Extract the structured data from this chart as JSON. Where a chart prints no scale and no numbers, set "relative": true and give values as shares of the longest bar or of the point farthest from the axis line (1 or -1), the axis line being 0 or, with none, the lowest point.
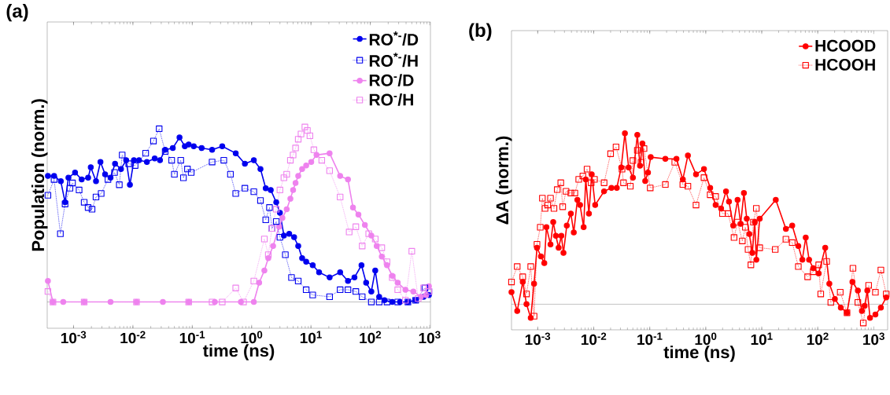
{
  "chart_data": [
    {
      "type": "line",
      "title": "(a)",
      "xlabel": "time (ns)",
      "ylabel": "Population (norm.)",
      "relative": true,
      "log": "x",
      "legend": "top right",
      "xlim": [
        0.00036,
        1030
      ],
      "xticks": [
        {
          "value": 0.001,
          "label": "10$^{-3}$"
        },
        {
          "value": 0.01,
          "label": "10$^{-2}$"
        },
        {
          "value": 0.1,
          "label": "10$^{-1}$"
        },
        {
          "value": 1,
          "label": "10$^{0}$"
        },
        {
          "value": 10,
          "label": "10$^{1}$"
        },
        {
          "value": 100,
          "label": "10$^{2}$"
        },
        {
          "value": 1000,
          "label": "10$^{3}$"
        }
      ],
      "series": [
        {
          "name": "RO$^{*-}$/D",
          "color": "#0000ee",
          "marker": "circle",
          "line_style": "solid",
          "x": [
            0.00037,
            0.00047,
            0.00061,
            0.00072,
            0.00082,
            0.00106,
            0.00137,
            0.00176,
            0.00195,
            0.00239,
            0.00284,
            0.0034,
            0.0042,
            0.005,
            0.0063,
            0.0077,
            0.0089,
            0.0104,
            0.0127,
            0.0172,
            0.0233,
            0.0286,
            0.035,
            0.047,
            0.061,
            0.075,
            0.087,
            0.106,
            0.144,
            0.216,
            0.32,
            0.54,
            0.77,
            1.09,
            1.41,
            1.73,
            2.1,
            2.6,
            3.0,
            3.5,
            4.3,
            5.2,
            6.1,
            7.1,
            8.3,
            10.7,
            13.7,
            20.6,
            31,
            42,
            54,
            71,
            85,
            104,
            121,
            141,
            173,
            234,
            317,
            430,
            580,
            790,
            970
          ],
          "values": [
            0.72,
            0.72,
            0.69,
            0.57,
            0.71,
            0.74,
            0.7,
            0.71,
            0.77,
            0.69,
            0.8,
            0.73,
            0.71,
            0.79,
            0.76,
            0.81,
            0.67,
            0.81,
            0.81,
            0.8,
            0.82,
            0.81,
            0.87,
            0.88,
            0.94,
            0.89,
            0.9,
            0.89,
            0.88,
            0.87,
            0.89,
            0.85,
            0.79,
            0.81,
            0.76,
            0.65,
            0.64,
            0.57,
            0.51,
            0.38,
            0.39,
            0.37,
            0.32,
            0.25,
            0.23,
            0.21,
            0.17,
            0.14,
            0.17,
            0.12,
            0.14,
            0.21,
            0.11,
            0.06,
            0.18,
            0.03,
            0.01,
            0.0,
            0.0,
            0.0,
            0.01,
            0.03,
            0.04
          ]
        },
        {
          "name": "RO$^{*-}$/H",
          "color": "#0000ee",
          "marker": "square",
          "line_style": "dotted",
          "x": [
            0.00037,
            0.00047,
            0.0006,
            0.00072,
            0.00087,
            0.00096,
            0.00124,
            0.00151,
            0.00176,
            0.00205,
            0.00239,
            0.00292,
            0.0038,
            0.0049,
            0.0059,
            0.0066,
            0.0085,
            0.0109,
            0.0164,
            0.0222,
            0.0277,
            0.035,
            0.045,
            0.05,
            0.064,
            0.071,
            0.083,
            0.096,
            0.216,
            0.34,
            0.44,
            0.54,
            0.77,
            1.09,
            1.41,
            1.73,
            2.0,
            2.2,
            2.6,
            3.0,
            3.7,
            4.7,
            6.1,
            8.3,
            10.7,
            20.6,
            31,
            42,
            57,
            73,
            104,
            141,
            191,
            290,
            430,
            580,
            830,
            970
          ],
          "values": [
            0.61,
            0.7,
            0.39,
            0.56,
            0.65,
            0.68,
            0.64,
            0.57,
            0.54,
            0.53,
            0.6,
            0.62,
            0.7,
            0.74,
            0.67,
            0.84,
            0.79,
            0.78,
            0.85,
            0.92,
            0.99,
            0.86,
            0.81,
            0.73,
            0.81,
            0.71,
            0.76,
            0.74,
            0.8,
            0.81,
            0.73,
            0.62,
            0.65,
            0.63,
            0.58,
            0.47,
            0.54,
            0.42,
            0.46,
            0.37,
            0.27,
            0.14,
            0.12,
            0.07,
            0.04,
            0.03,
            0.07,
            0.07,
            0.06,
            0.03,
            0.0,
            0.0,
            0.0,
            0.0,
            0.0,
            0.01,
            0.08,
            0.06
          ]
        },
        {
          "name": "RO$^{-}$/D",
          "color": "#ee82ee",
          "marker": "circle",
          "line_style": "solid",
          "x": [
            0.00037,
            0.00045,
            0.00067,
            0.00151,
            0.0042,
            0.0115,
            0.032,
            0.087,
            0.24,
            0.66,
            1.09,
            1.34,
            1.64,
            1.91,
            2.3,
            2.9,
            3.3,
            3.9,
            4.5,
            5.0,
            5.5,
            6.1,
            7.1,
            8.3,
            10.1,
            12.4,
            20.6,
            31,
            42,
            51,
            63,
            81,
            104,
            128,
            156,
            191,
            234,
            290,
            390,
            530,
            710,
            870,
            970
          ],
          "values": [
            0.12,
            0.0,
            0.0,
            0.0,
            0.0,
            0.0,
            0.0,
            0.0,
            0.0,
            0.0,
            0.0,
            0.11,
            0.18,
            0.25,
            0.32,
            0.43,
            0.48,
            0.53,
            0.59,
            0.64,
            0.68,
            0.72,
            0.76,
            0.78,
            0.8,
            0.84,
            0.85,
            0.72,
            0.7,
            0.54,
            0.5,
            0.44,
            0.38,
            0.32,
            0.26,
            0.21,
            0.15,
            0.11,
            0.07,
            0.06,
            0.03,
            0.04,
            0.09
          ]
        },
        {
          "name": "RO$^{-}$/H",
          "color": "#ee82ee",
          "marker": "square",
          "line_style": "dotted",
          "x": [
            0.00037,
            0.00045,
            0.00151,
            0.0115,
            0.087,
            0.216,
            0.32,
            0.54,
            0.73,
            1.09,
            1.64,
            1.91,
            2.2,
            2.6,
            3.0,
            3.5,
            3.9,
            4.5,
            5.0,
            5.5,
            6.1,
            6.8,
            7.9,
            8.7,
            9.6,
            11.2,
            15.2,
            20.6,
            31,
            44,
            57,
            73,
            94,
            121,
            156,
            191,
            234,
            290,
            390,
            500,
            640,
            790,
            970
          ],
          "values": [
            0.06,
            0.0,
            0.0,
            0.0,
            0.0,
            0.0,
            0.0,
            0.08,
            0.0,
            0.12,
            0.36,
            0.27,
            0.42,
            0.53,
            0.64,
            0.71,
            0.73,
            0.81,
            0.84,
            0.88,
            0.93,
            0.96,
            1.0,
            0.98,
            0.95,
            0.87,
            0.81,
            0.75,
            0.6,
            0.4,
            0.43,
            0.32,
            0.39,
            0.36,
            0.31,
            0.23,
            0.14,
            0.07,
            0.01,
            0.29,
            0.02,
            0.08,
            0.06
          ]
        }
      ]
    },
    {
      "type": "line",
      "title": "(b)",
      "xlabel": "time (ns)",
      "ylabel": "ΔA (norm.)",
      "relative": true,
      "log": "x",
      "legend": "top right",
      "xlim": [
        0.00034,
        1770
      ],
      "xticks": [
        {
          "value": 0.001,
          "label": "10$^{-3}$"
        },
        {
          "value": 0.01,
          "label": "10$^{-2}$"
        },
        {
          "value": 0.1,
          "label": "10$^{-1}$"
        },
        {
          "value": 1,
          "label": "10$^{0}$"
        },
        {
          "value": 10,
          "label": "10$^{1}$"
        },
        {
          "value": 100,
          "label": "10$^{2}$"
        },
        {
          "value": 1000,
          "label": "10$^{3}$"
        }
      ],
      "series": [
        {
          "name": "HCOOD",
          "color": "#ff0000",
          "marker": "circle",
          "line_style": "solid",
          "x": [
            0.00034,
            0.00043,
            0.00054,
            0.00063,
            0.00075,
            0.00086,
            0.00097,
            0.00114,
            0.00131,
            0.00143,
            0.00169,
            0.00189,
            0.00211,
            0.00236,
            0.00264,
            0.00288,
            0.0033,
            0.0039,
            0.0044,
            0.0051,
            0.0057,
            0.0066,
            0.0072,
            0.0082,
            0.0092,
            0.0106,
            0.0153,
            0.0207,
            0.0258,
            0.031,
            0.036,
            0.042,
            0.05,
            0.06,
            0.067,
            0.074,
            0.083,
            0.093,
            0.104,
            0.19,
            0.3,
            0.39,
            0.48,
            0.67,
            0.93,
            1.2,
            1.5,
            1.88,
            2.3,
            2.6,
            3.1,
            3.7,
            4.2,
            4.8,
            5.4,
            6.0,
            6.8,
            7.5,
            8.0,
            9.2,
            17.8,
            27,
            35,
            45,
            53,
            61,
            70,
            83,
            104,
            136,
            161,
            202,
            258,
            333,
            416,
            520,
            614,
            686,
            767,
            857,
            1070,
            1340,
            1670
          ],
          "values": [
            0.07,
            -0.04,
            0.13,
            0.0,
            -0.08,
            0.12,
            0.33,
            0.28,
            0.24,
            0.45,
            0.35,
            0.48,
            0.4,
            0.33,
            0.4,
            0.3,
            0.46,
            0.53,
            0.42,
            0.61,
            0.58,
            0.45,
            0.73,
            0.53,
            0.76,
            0.58,
            0.66,
            0.68,
            0.68,
            0.8,
            1.0,
            0.8,
            0.74,
            0.99,
            0.81,
            0.94,
            0.72,
            0.77,
            0.86,
            0.85,
            0.85,
            0.73,
            0.87,
            0.76,
            0.79,
            0.68,
            0.58,
            0.56,
            0.66,
            0.6,
            0.46,
            0.61,
            0.47,
            0.65,
            0.5,
            0.41,
            0.3,
            0.48,
            0.26,
            0.5,
            0.61,
            0.44,
            0.46,
            0.34,
            0.26,
            0.39,
            0.26,
            0.21,
            0.18,
            0.33,
            0.12,
            0.03,
            -0.02,
            -0.05,
            0.13,
            0.08,
            -0.04,
            -0.01,
            0.08,
            -0.08,
            -0.06,
            -0.02,
            0.04
          ]
        },
        {
          "name": "HCOOH",
          "color": "#ff0000",
          "marker": "square",
          "line_style": "dotted",
          "x": [
            0.00034,
            0.00043,
            0.00054,
            0.00063,
            0.00075,
            0.00086,
            0.00097,
            0.00111,
            0.00121,
            0.00135,
            0.00151,
            0.00169,
            0.00195,
            0.00223,
            0.00258,
            0.00279,
            0.0032,
            0.0039,
            0.0046,
            0.0054,
            0.0064,
            0.0076,
            0.009,
            0.0103,
            0.0153,
            0.02,
            0.025,
            0.032,
            0.034,
            0.045,
            0.05,
            0.06,
            0.07,
            0.079,
            0.102,
            0.19,
            0.28,
            0.39,
            0.48,
            0.67,
            0.93,
            1.2,
            1.5,
            1.99,
            2.5,
            3.2,
            3.7,
            4.5,
            5.1,
            5.7,
            6.4,
            7.1,
            8.0,
            9.2,
            17.4,
            27,
            35,
            45,
            66,
            83,
            104,
            113,
            144,
            171,
            252,
            333,
            425,
            520,
            650,
            810,
            1070,
            1340,
            1670
          ],
          "values": [
            0.13,
            0.22,
            0.16,
            0.06,
            0.22,
            -0.07,
            0.35,
            0.45,
            0.62,
            0.56,
            0.58,
            0.62,
            0.56,
            0.67,
            0.71,
            0.57,
            0.66,
            0.65,
            0.65,
            0.73,
            0.75,
            0.79,
            0.71,
            0.73,
            0.71,
            0.88,
            0.92,
            0.79,
            0.71,
            0.69,
            0.84,
            0.9,
            0.83,
            0.91,
            0.68,
            0.7,
            0.83,
            0.7,
            0.69,
            0.58,
            0.74,
            0.64,
            0.63,
            0.53,
            0.53,
            0.39,
            0.48,
            0.37,
            0.45,
            0.32,
            0.23,
            0.48,
            0.56,
            0.33,
            0.32,
            0.38,
            0.36,
            0.22,
            0.16,
            0.19,
            0.23,
            0.06,
            0.25,
            0.01,
            0.07,
            -0.05,
            0.21,
            0.01,
            -0.11,
            0.11,
            0.07,
            0.2,
            0.06
          ]
        }
      ]
    }
  ]
}
